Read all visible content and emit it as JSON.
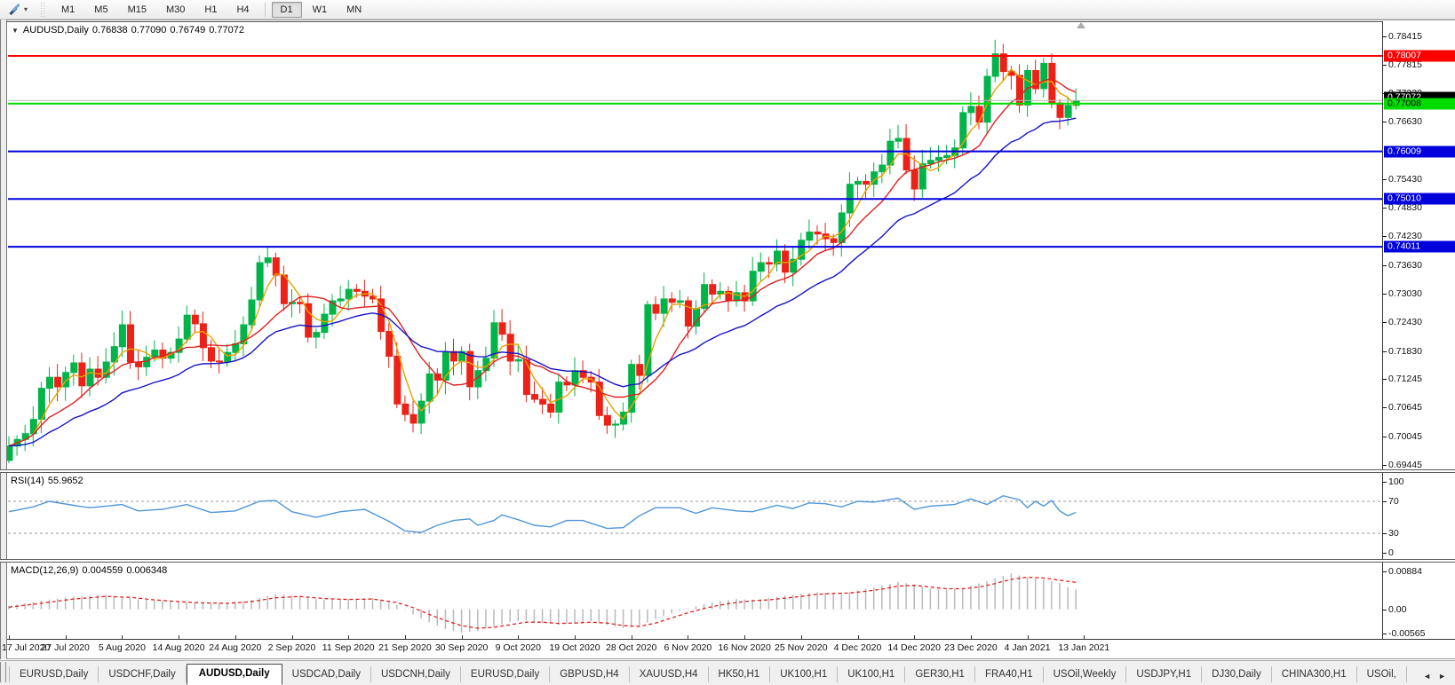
{
  "toolbar": {
    "cursor_tool": {
      "icon": "chart-tools-icon",
      "dropdown_glyph": "▾"
    },
    "timeframes": [
      {
        "label": "M1",
        "active": false
      },
      {
        "label": "M5",
        "active": false
      },
      {
        "label": "M15",
        "active": false
      },
      {
        "label": "M30",
        "active": false
      },
      {
        "label": "H1",
        "active": false
      },
      {
        "label": "H4",
        "active": false
      },
      {
        "label": "D1",
        "active": true
      },
      {
        "label": "W1",
        "active": false
      },
      {
        "label": "MN",
        "active": false
      }
    ]
  },
  "chart": {
    "title": {
      "dropdown_glyph": "▼",
      "symbol": "AUDUSD,Daily",
      "open": "0.76838",
      "high": "0.77090",
      "low": "0.76749",
      "close": "0.77072"
    },
    "price_axis_ticks": [
      0.78415,
      0.77815,
      0.7723,
      0.7663,
      0.7543,
      0.7483,
      0.7423,
      0.7363,
      0.7303,
      0.7243,
      0.7183,
      0.71245,
      0.70645,
      0.70045,
      0.69445
    ],
    "hlines": [
      {
        "price": 0.78007,
        "label": "0.78007",
        "line_color": "#FF0000",
        "label_bg": "#FF0000",
        "label_fg": "#FFFFFF"
      },
      {
        "price": 0.77008,
        "label": "0.77008",
        "line_color": "#00DC00",
        "label_bg": "#00DC00",
        "label_fg": "#000000"
      },
      {
        "price": 0.76009,
        "label": "0.76009",
        "line_color": "#0000DC",
        "label_bg": "#0000DC",
        "label_fg": "#FFFFFF"
      },
      {
        "price": 0.7501,
        "label": "0.75010",
        "line_color": "#0000DC",
        "label_bg": "#0000DC",
        "label_fg": "#FFFFFF"
      },
      {
        "price": 0.74011,
        "label": "0.74011",
        "line_color": "#0000DC",
        "label_bg": "#0000DC",
        "label_fg": "#FFFFFF"
      }
    ],
    "current_price": {
      "value": 0.77072,
      "label": "0.77072",
      "line_color": "#b8b8b8",
      "label_bg": "#000000",
      "label_fg": "#FFFFFF"
    }
  },
  "panes": {
    "rsi": {
      "name": "RSI(14)",
      "value": "55.9652",
      "ticks": [
        {
          "v": 100,
          "label": "100"
        },
        {
          "v": 70,
          "label": "70"
        },
        {
          "v": 30,
          "label": "30"
        },
        {
          "v": 0,
          "label": "0"
        }
      ],
      "levels": [
        70,
        30
      ]
    },
    "macd": {
      "name": "MACD(12,26,9)",
      "value_main": "0.004559",
      "value_signal": "0.006348",
      "ticks": [
        {
          "v": 0.00884,
          "label": "0.00884"
        },
        {
          "v": 0,
          "label": "0.00"
        },
        {
          "v": -0.00565,
          "label": "-0.00565"
        }
      ]
    }
  },
  "time_axis": {
    "dates": [
      "17 Jul 2020",
      "27 Jul 2020",
      "5 Aug 2020",
      "14 Aug 2020",
      "24 Aug 2020",
      "2 Sep 2020",
      "11 Sep 2020",
      "21 Sep 2020",
      "30 Sep 2020",
      "9 Oct 2020",
      "19 Oct 2020",
      "28 Oct 2020",
      "6 Nov 2020",
      "16 Nov 2020",
      "25 Nov 2020",
      "4 Dec 2020",
      "14 Dec 2020",
      "23 Dec 2020",
      "4 Jan 2021",
      "13 Jan 2021"
    ]
  },
  "tabs": {
    "items": [
      {
        "label": "EURUSD,Daily",
        "active": false
      },
      {
        "label": "USDCHF,Daily",
        "active": false
      },
      {
        "label": "AUDUSD,Daily",
        "active": true
      },
      {
        "label": "USDCAD,Daily",
        "active": false
      },
      {
        "label": "USDCNH,Daily",
        "active": false
      },
      {
        "label": "EURUSD,Daily",
        "active": false
      },
      {
        "label": "GBPUSD,H4",
        "active": false
      },
      {
        "label": "XAUUSD,H4",
        "active": false
      },
      {
        "label": "HK50,H1",
        "active": false
      },
      {
        "label": "UK100,H1",
        "active": false
      },
      {
        "label": "UK100,H1",
        "active": false
      },
      {
        "label": "GER30,H1",
        "active": false
      },
      {
        "label": "FRA40,H1",
        "active": false
      },
      {
        "label": "USOil,Weekly",
        "active": false
      },
      {
        "label": "USDJPY,H1",
        "active": false
      },
      {
        "label": "DJ30,Daily",
        "active": false
      },
      {
        "label": "CHINA300,H1",
        "active": false
      },
      {
        "label": "USOil,",
        "active": false
      }
    ],
    "scroll_left_glyph": "◄",
    "scroll_right_glyph": "►"
  },
  "colors": {
    "up": "#00B44A",
    "down": "#EC2117",
    "ma_fast": "#E8A200",
    "ma_mid": "#E02020",
    "ma_slow": "#1414C8",
    "rsi_line": "#4f96d8",
    "level_dash": "#9a9a9a",
    "macd_hist": "#b9b9b9",
    "macd_signal": "#E02020"
  },
  "chart_data": [
    {
      "type": "candlestick",
      "title": "AUDUSD,Daily",
      "ylim": [
        0.69445,
        0.78415
      ],
      "x_tick_labels": [
        "17 Jul 2020",
        "27 Jul 2020",
        "5 Aug 2020",
        "14 Aug 2020",
        "24 Aug 2020",
        "2 Sep 2020",
        "11 Sep 2020",
        "21 Sep 2020",
        "30 Sep 2020",
        "9 Oct 2020",
        "19 Oct 2020",
        "28 Oct 2020",
        "6 Nov 2020",
        "16 Nov 2020",
        "25 Nov 2020",
        "4 Dec 2020",
        "14 Dec 2020",
        "23 Dec 2020",
        "4 Jan 2021",
        "13 Jan 2021"
      ],
      "closes": [
        0.6984,
        0.6998,
        0.701,
        0.704,
        0.7105,
        0.7128,
        0.7108,
        0.7138,
        0.7158,
        0.711,
        0.7145,
        0.7128,
        0.716,
        0.7192,
        0.7238,
        0.716,
        0.715,
        0.717,
        0.7185,
        0.7168,
        0.718,
        0.7208,
        0.7258,
        0.724,
        0.719,
        0.7162,
        0.716,
        0.718,
        0.7198,
        0.7238,
        0.729,
        0.7368,
        0.7378,
        0.7342,
        0.7282,
        0.7285,
        0.7282,
        0.7212,
        0.7222,
        0.726,
        0.7288,
        0.7292,
        0.7312,
        0.7308,
        0.7298,
        0.7292,
        0.7224,
        0.7172,
        0.7072,
        0.705,
        0.7032,
        0.7078,
        0.7135,
        0.7122,
        0.7182,
        0.7162,
        0.7182,
        0.7108,
        0.7142,
        0.7168,
        0.7242,
        0.7218,
        0.7162,
        0.7165,
        0.7092,
        0.7082,
        0.7072,
        0.7055,
        0.7118,
        0.7112,
        0.7142,
        0.7128,
        0.7118,
        0.7048,
        0.7028,
        0.703,
        0.7055,
        0.7155,
        0.7132,
        0.728,
        0.7262,
        0.7292,
        0.7285,
        0.7288,
        0.7235,
        0.7272,
        0.7322,
        0.7302,
        0.7308,
        0.7288,
        0.7305,
        0.7288,
        0.735,
        0.7368,
        0.7365,
        0.7392,
        0.7348,
        0.7375,
        0.7415,
        0.7432,
        0.7428,
        0.7418,
        0.741,
        0.7472,
        0.7532,
        0.7538,
        0.7532,
        0.7558,
        0.7572,
        0.7622,
        0.7628,
        0.7562,
        0.7522,
        0.7575,
        0.7582,
        0.7588,
        0.7592,
        0.7608,
        0.7682,
        0.7695,
        0.7662,
        0.7758,
        0.7805,
        0.7768,
        0.776,
        0.7698,
        0.777,
        0.7732,
        0.7785,
        0.7702,
        0.7672,
        0.7697,
        0.7707
      ],
      "moving_averages": [
        {
          "name": "ma-fast",
          "method": "sma",
          "period": 4,
          "color_key": "ma_fast"
        },
        {
          "name": "ma-mid",
          "method": "sma",
          "period": 9,
          "color_key": "ma_mid"
        },
        {
          "name": "ma-slow",
          "method": "ema",
          "period": 22,
          "color_key": "ma_slow"
        }
      ],
      "hlines": [
        0.78007,
        0.77008,
        0.76009,
        0.7501,
        0.74011
      ],
      "current_price": 0.77072
    },
    {
      "type": "line",
      "title": "RSI(14)",
      "current": 55.9652,
      "ylim": [
        0,
        100
      ],
      "levels": [
        70,
        30
      ],
      "points": [
        [
          0,
          57
        ],
        [
          3,
          63
        ],
        [
          5,
          70
        ],
        [
          8,
          65
        ],
        [
          10,
          62
        ],
        [
          14,
          66
        ],
        [
          16,
          58
        ],
        [
          19,
          60
        ],
        [
          22,
          66
        ],
        [
          25,
          56
        ],
        [
          28,
          58
        ],
        [
          31,
          70
        ],
        [
          33,
          71
        ],
        [
          35,
          57
        ],
        [
          38,
          50
        ],
        [
          41,
          57
        ],
        [
          44,
          60
        ],
        [
          47,
          45
        ],
        [
          49,
          33
        ],
        [
          51,
          31
        ],
        [
          53,
          40
        ],
        [
          55,
          46
        ],
        [
          57,
          48
        ],
        [
          58,
          40
        ],
        [
          60,
          46
        ],
        [
          61,
          53
        ],
        [
          63,
          47
        ],
        [
          65,
          40
        ],
        [
          67,
          38
        ],
        [
          69,
          46
        ],
        [
          71,
          46
        ],
        [
          74,
          36
        ],
        [
          76,
          37
        ],
        [
          78,
          52
        ],
        [
          80,
          62
        ],
        [
          83,
          62
        ],
        [
          85,
          55
        ],
        [
          87,
          62
        ],
        [
          90,
          58
        ],
        [
          92,
          57
        ],
        [
          95,
          65
        ],
        [
          97,
          61
        ],
        [
          99,
          68
        ],
        [
          101,
          67
        ],
        [
          103,
          63
        ],
        [
          105,
          70
        ],
        [
          107,
          69
        ],
        [
          110,
          74
        ],
        [
          112,
          60
        ],
        [
          114,
          64
        ],
        [
          117,
          66
        ],
        [
          119,
          73
        ],
        [
          121,
          66
        ],
        [
          123,
          77
        ],
        [
          125,
          72
        ],
        [
          126,
          62
        ],
        [
          127,
          70
        ],
        [
          128,
          64
        ],
        [
          129,
          71
        ],
        [
          130,
          58
        ],
        [
          131,
          52
        ],
        [
          132,
          56
        ]
      ]
    },
    {
      "type": "histogram+line",
      "title": "MACD(12,26,9)",
      "current_macd": 0.004559,
      "current_signal": 0.006348,
      "ylim": [
        -0.00565,
        0.00884
      ],
      "histogram_points": [
        [
          0,
          0.0008
        ],
        [
          4,
          0.002
        ],
        [
          8,
          0.003
        ],
        [
          12,
          0.0034
        ],
        [
          15,
          0.0026
        ],
        [
          18,
          0.002
        ],
        [
          21,
          0.0018
        ],
        [
          24,
          0.0015
        ],
        [
          27,
          0.0014
        ],
        [
          30,
          0.0022
        ],
        [
          33,
          0.0036
        ],
        [
          36,
          0.003
        ],
        [
          39,
          0.0022
        ],
        [
          42,
          0.0024
        ],
        [
          45,
          0.0026
        ],
        [
          48,
          0.001
        ],
        [
          50,
          -0.0012
        ],
        [
          52,
          -0.003
        ],
        [
          54,
          -0.0046
        ],
        [
          56,
          -0.0055
        ],
        [
          58,
          -0.005
        ],
        [
          60,
          -0.004
        ],
        [
          62,
          -0.003
        ],
        [
          64,
          -0.0026
        ],
        [
          66,
          -0.0032
        ],
        [
          68,
          -0.0036
        ],
        [
          70,
          -0.0032
        ],
        [
          72,
          -0.0028
        ],
        [
          74,
          -0.0036
        ],
        [
          76,
          -0.0044
        ],
        [
          78,
          -0.004
        ],
        [
          80,
          -0.0022
        ],
        [
          82,
          -0.001
        ],
        [
          84,
          0.0002
        ],
        [
          86,
          0.0012
        ],
        [
          88,
          0.002
        ],
        [
          90,
          0.0024
        ],
        [
          92,
          0.0022
        ],
        [
          94,
          0.0026
        ],
        [
          96,
          0.0032
        ],
        [
          98,
          0.0036
        ],
        [
          100,
          0.004
        ],
        [
          102,
          0.0038
        ],
        [
          104,
          0.004
        ],
        [
          106,
          0.0048
        ],
        [
          108,
          0.0055
        ],
        [
          110,
          0.0064
        ],
        [
          112,
          0.0058
        ],
        [
          114,
          0.0048
        ],
        [
          116,
          0.0046
        ],
        [
          118,
          0.005
        ],
        [
          120,
          0.006
        ],
        [
          122,
          0.0072
        ],
        [
          124,
          0.0084
        ],
        [
          126,
          0.0074
        ],
        [
          128,
          0.007
        ],
        [
          130,
          0.0062
        ],
        [
          131,
          0.0052
        ],
        [
          132,
          0.0046
        ]
      ],
      "signal_points": [
        [
          0,
          0.0005
        ],
        [
          4,
          0.0014
        ],
        [
          8,
          0.0024
        ],
        [
          12,
          0.003
        ],
        [
          15,
          0.0028
        ],
        [
          18,
          0.0022
        ],
        [
          21,
          0.0018
        ],
        [
          24,
          0.0015
        ],
        [
          27,
          0.0014
        ],
        [
          30,
          0.0018
        ],
        [
          33,
          0.0027
        ],
        [
          36,
          0.003
        ],
        [
          39,
          0.0025
        ],
        [
          42,
          0.0023
        ],
        [
          45,
          0.0024
        ],
        [
          48,
          0.0016
        ],
        [
          50,
          0.0004
        ],
        [
          52,
          -0.0012
        ],
        [
          54,
          -0.0026
        ],
        [
          56,
          -0.0038
        ],
        [
          58,
          -0.0044
        ],
        [
          60,
          -0.0042
        ],
        [
          62,
          -0.0036
        ],
        [
          64,
          -0.003
        ],
        [
          66,
          -0.003
        ],
        [
          68,
          -0.0033
        ],
        [
          70,
          -0.0032
        ],
        [
          72,
          -0.003
        ],
        [
          74,
          -0.0032
        ],
        [
          76,
          -0.0038
        ],
        [
          78,
          -0.004
        ],
        [
          80,
          -0.0032
        ],
        [
          82,
          -0.002
        ],
        [
          84,
          -0.0008
        ],
        [
          86,
          0.0002
        ],
        [
          88,
          0.001
        ],
        [
          90,
          0.0016
        ],
        [
          92,
          0.002
        ],
        [
          94,
          0.0022
        ],
        [
          96,
          0.0026
        ],
        [
          98,
          0.003
        ],
        [
          100,
          0.0035
        ],
        [
          102,
          0.0037
        ],
        [
          104,
          0.0038
        ],
        [
          106,
          0.0042
        ],
        [
          108,
          0.0047
        ],
        [
          110,
          0.0054
        ],
        [
          112,
          0.0056
        ],
        [
          114,
          0.0052
        ],
        [
          116,
          0.0048
        ],
        [
          118,
          0.0048
        ],
        [
          120,
          0.0052
        ],
        [
          122,
          0.006
        ],
        [
          124,
          0.007
        ],
        [
          126,
          0.0075
        ],
        [
          128,
          0.0073
        ],
        [
          130,
          0.0068
        ],
        [
          132,
          0.0063
        ]
      ]
    }
  ]
}
